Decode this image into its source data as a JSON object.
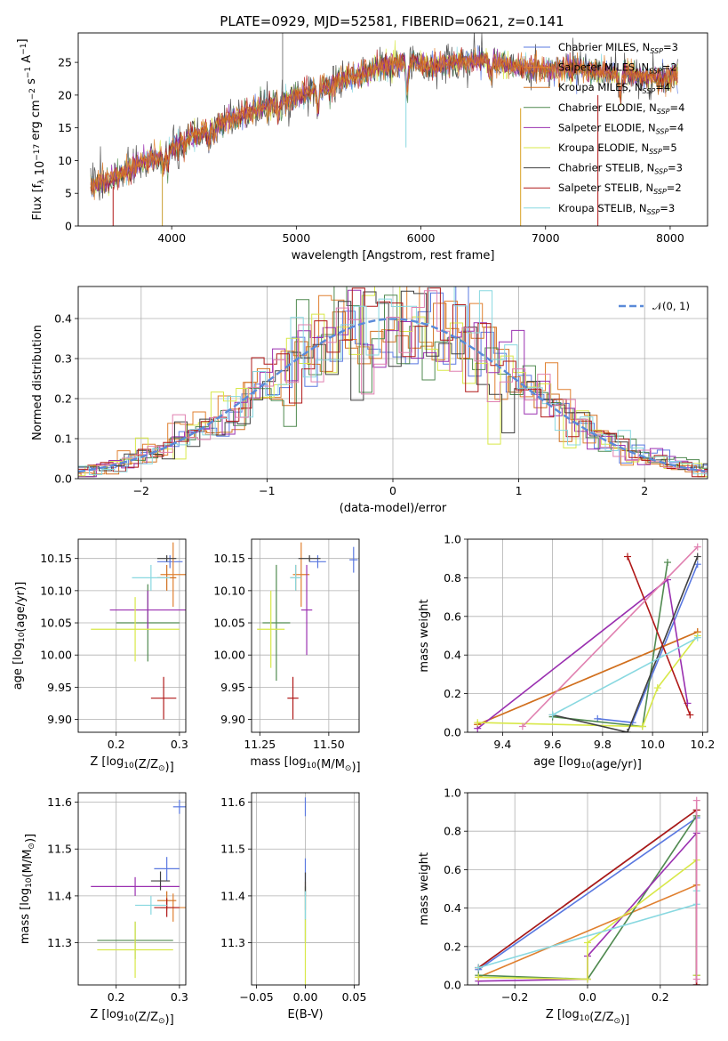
{
  "title": "PLATE=0929, MJD=52581, FIBERID=0621, z=0.141",
  "models": [
    {
      "name": "Chabrier MILES",
      "nssp": "3",
      "color": "#5a78e0"
    },
    {
      "name": "Salpeter MILES",
      "nssp": "2",
      "color": "#e08030"
    },
    {
      "name": "Kroupa MILES",
      "nssp": "4",
      "color": "#d07020"
    },
    {
      "name": "Chabrier ELODIE",
      "nssp": "4",
      "color": "#508a50"
    },
    {
      "name": "Salpeter ELODIE",
      "nssp": "4",
      "color": "#9a30b0"
    },
    {
      "name": "Kroupa ELODIE",
      "nssp": "5",
      "color": "#d8e848"
    },
    {
      "name": "Chabrier STELIB",
      "nssp": "3",
      "color": "#404040"
    },
    {
      "name": "Salpeter STELIB",
      "nssp": "2",
      "color": "#b01818"
    },
    {
      "name": "Kroupa STELIB",
      "nssp": "3",
      "color": "#88d8e0"
    }
  ],
  "chart_data": [
    {
      "type": "line",
      "id": "spectrum",
      "xlabel": "wavelength [Angstrom, rest frame]",
      "ylabel": "Flux [f_λ 10^-17 erg cm^-2 s^-1 A^-1]",
      "xlim": [
        3250,
        8300
      ],
      "ylim": [
        0,
        29.5
      ],
      "xticks": [
        4000,
        5000,
        6000,
        7000,
        8000
      ],
      "yticks": [
        0,
        5,
        10,
        15,
        20,
        25
      ],
      "grid": false,
      "legend": "top-right",
      "continuum": [
        [
          3350,
          6.2
        ],
        [
          3500,
          7.0
        ],
        [
          3650,
          8.5
        ],
        [
          3800,
          10.0
        ],
        [
          3950,
          11.0
        ],
        [
          4000,
          11.8
        ],
        [
          4100,
          13.0
        ],
        [
          4200,
          14.0
        ],
        [
          4300,
          15.0
        ],
        [
          4500,
          16.5
        ],
        [
          4700,
          18.0
        ],
        [
          4900,
          19.0
        ],
        [
          5100,
          20.5
        ],
        [
          5300,
          22.0
        ],
        [
          5500,
          23.0
        ],
        [
          5700,
          24.5
        ],
        [
          5900,
          24.8
        ],
        [
          6100,
          24.5
        ],
        [
          6300,
          25.0
        ],
        [
          6500,
          25.5
        ],
        [
          6700,
          24.5
        ],
        [
          6900,
          24.0
        ],
        [
          7100,
          24.0
        ],
        [
          7300,
          24.0
        ],
        [
          7500,
          23.5
        ],
        [
          7700,
          23.0
        ],
        [
          7900,
          22.5
        ],
        [
          8050,
          23.0
        ]
      ],
      "line_xrange": [
        3350,
        8060
      ]
    },
    {
      "type": "histogram",
      "id": "residuals",
      "xlabel": "(data-model)/error",
      "ylabel": "Normed distribution",
      "xlim": [
        -2.5,
        2.5
      ],
      "ylim": [
        0,
        0.48
      ],
      "xticks": [
        -2,
        -1,
        0,
        1,
        2
      ],
      "yticks": [
        0.0,
        0.1,
        0.2,
        0.3,
        0.4
      ],
      "grid": true,
      "legend": "top-right",
      "reference_curve": {
        "label": "𝒩(0, 1)",
        "color": "#5a8ad8",
        "mean": 0,
        "sigma": 1
      },
      "bin_width": 0.1
    },
    {
      "type": "errorbar",
      "id": "age-vs-Z",
      "xlabel": "Z [log10(Z/Z⊙)]",
      "ylabel": "age  [log10(age/yr)]",
      "xlim": [
        0.14,
        0.31
      ],
      "ylim": [
        9.88,
        10.18
      ],
      "xticks": [
        0.2,
        0.3
      ],
      "yticks": [
        9.9,
        9.95,
        10.0,
        10.05,
        10.1,
        10.15
      ],
      "grid": true,
      "points": [
        {
          "model": 0,
          "x": 0.285,
          "xerr": 0.02,
          "y": 10.145,
          "yerr": 0.01
        },
        {
          "model": 1,
          "x": 0.29,
          "xerr": 0.02,
          "y": 10.125,
          "yerr": 0.05
        },
        {
          "model": 2,
          "x": 0.28,
          "xerr": 0.015,
          "y": 10.12,
          "yerr": 0.02
        },
        {
          "model": 3,
          "x": 0.25,
          "xerr": 0.05,
          "y": 10.05,
          "yerr": 0.06
        },
        {
          "model": 4,
          "x": 0.25,
          "xerr": 0.06,
          "y": 10.07,
          "yerr": 0.03
        },
        {
          "model": 5,
          "x": 0.23,
          "xerr": 0.07,
          "y": 10.04,
          "yerr": 0.05
        },
        {
          "model": 6,
          "x": 0.28,
          "xerr": 0.015,
          "y": 10.15,
          "yerr": 0.005
        },
        {
          "model": 7,
          "x": 0.275,
          "xerr": 0.02,
          "y": 9.933,
          "yerr": 0.033
        },
        {
          "model": 8,
          "x": 0.255,
          "xerr": 0.03,
          "y": 10.12,
          "yerr": 0.02
        }
      ]
    },
    {
      "type": "errorbar",
      "id": "age-vs-mass",
      "xlabel": "mass [log10(M/M⊙)]",
      "ylabel": "",
      "xlim": [
        11.22,
        11.61
      ],
      "ylim": [
        9.88,
        10.18
      ],
      "xticks": [
        11.25,
        11.5
      ],
      "yticks": [
        9.9,
        9.95,
        10.0,
        10.05,
        10.1,
        10.15
      ],
      "grid": true,
      "points": [
        {
          "model": 0,
          "x": 11.46,
          "xerr": 0.03,
          "y": 10.145,
          "yerr": 0.01
        },
        {
          "model": 1,
          "x": 11.4,
          "xerr": 0.03,
          "y": 10.125,
          "yerr": 0.05
        },
        {
          "model": 2,
          "x": 11.38,
          "xerr": 0.02,
          "y": 10.12,
          "yerr": 0.02
        },
        {
          "model": 3,
          "x": 11.31,
          "xerr": 0.05,
          "y": 10.05,
          "yerr": 0.09
        },
        {
          "model": 4,
          "x": 11.42,
          "xerr": 0.02,
          "y": 10.07,
          "yerr": 0.07
        },
        {
          "model": 5,
          "x": 11.29,
          "xerr": 0.05,
          "y": 10.04,
          "yerr": 0.06
        },
        {
          "model": 6,
          "x": 11.43,
          "xerr": 0.04,
          "y": 10.15,
          "yerr": 0.005
        },
        {
          "model": 7,
          "x": 11.37,
          "xerr": 0.02,
          "y": 9.933,
          "yerr": 0.033
        },
        {
          "model": 8,
          "x": 11.38,
          "xerr": 0.02,
          "y": 10.12,
          "yerr": 0.02
        },
        {
          "model": 0,
          "x": 11.59,
          "xerr": 0.015,
          "y": 10.148,
          "yerr": 0.02
        }
      ]
    },
    {
      "type": "line",
      "id": "mass-weight-vs-age",
      "xlabel": "age  [log10(age/yr)]",
      "ylabel": "mass weight",
      "xlim": [
        9.26,
        10.22
      ],
      "ylim": [
        0,
        1.0
      ],
      "xticks": [
        9.4,
        9.6,
        9.8,
        10.0,
        10.2
      ],
      "yticks": [
        0.0,
        0.2,
        0.4,
        0.6,
        0.8,
        1.0
      ],
      "grid": true,
      "series": [
        {
          "model": 0,
          "x": [
            9.78,
            9.92,
            10.18
          ],
          "y": [
            0.07,
            0.05,
            0.87
          ]
        },
        {
          "model": 1,
          "x": [
            9.3,
            10.18
          ],
          "y": [
            0.04,
            0.52
          ]
        },
        {
          "model": 2,
          "x": [
            9.3,
            10.18
          ],
          "y": [
            0.04,
            0.52
          ]
        },
        {
          "model": 3,
          "x": [
            9.6,
            9.96,
            10.06
          ],
          "y": [
            0.08,
            0.03,
            0.88
          ]
        },
        {
          "model": 4,
          "x": [
            9.3,
            10.06,
            10.14
          ],
          "y": [
            0.02,
            0.79,
            0.15
          ]
        },
        {
          "model": 5,
          "x": [
            9.3,
            9.96,
            10.02,
            10.18
          ],
          "y": [
            0.05,
            0.03,
            0.23,
            0.5
          ]
        },
        {
          "model": 6,
          "x": [
            9.6,
            9.9,
            10.18
          ],
          "y": [
            0.09,
            0.0,
            0.91
          ]
        },
        {
          "model": 7,
          "x": [
            9.9,
            10.15
          ],
          "y": [
            0.91,
            0.09
          ]
        },
        {
          "model": 8,
          "x": [
            9.6,
            10.18
          ],
          "y": [
            0.09,
            0.49
          ]
        },
        {
          "model": 0,
          "x": [
            9.48,
            10.18
          ],
          "y": [
            0.03,
            0.96
          ]
        }
      ]
    },
    {
      "type": "errorbar",
      "id": "mass-vs-Z",
      "xlabel": "Z [log10(Z/Z⊙)]",
      "ylabel": "mass [log10(M/M⊙)]",
      "xlim": [
        0.14,
        0.31
      ],
      "ylim": [
        11.21,
        11.62
      ],
      "xticks": [
        0.2,
        0.3
      ],
      "yticks": [
        11.3,
        11.4,
        11.5,
        11.6
      ],
      "grid": true,
      "points": [
        {
          "model": 0,
          "x": 0.28,
          "xerr": 0.02,
          "y": 11.458,
          "yerr": 0.025
        },
        {
          "model": 1,
          "x": 0.29,
          "xerr": 0.02,
          "y": 11.375,
          "yerr": 0.03
        },
        {
          "model": 2,
          "x": 0.28,
          "xerr": 0.015,
          "y": 11.39,
          "yerr": 0.02
        },
        {
          "model": 3,
          "x": 0.23,
          "xerr": 0.06,
          "y": 11.305,
          "yerr": 0.04
        },
        {
          "model": 4,
          "x": 0.23,
          "xerr": 0.07,
          "y": 11.42,
          "yerr": 0.02
        },
        {
          "model": 5,
          "x": 0.23,
          "xerr": 0.06,
          "y": 11.285,
          "yerr": 0.06
        },
        {
          "model": 6,
          "x": 0.27,
          "xerr": 0.015,
          "y": 11.432,
          "yerr": 0.02
        },
        {
          "model": 7,
          "x": 0.28,
          "xerr": 0.02,
          "y": 11.375,
          "yerr": 0.02
        },
        {
          "model": 8,
          "x": 0.255,
          "xerr": 0.025,
          "y": 11.38,
          "yerr": 0.02
        },
        {
          "model": 0,
          "x": 0.3,
          "xerr": 0.01,
          "y": 11.59,
          "yerr": 0.015
        }
      ]
    },
    {
      "type": "errorbar",
      "id": "mass-vs-EBV",
      "xlabel": "E(B-V)",
      "ylabel": "",
      "xlim": [
        -0.055,
        0.055
      ],
      "ylim": [
        11.21,
        11.62
      ],
      "xticks": [
        -0.05,
        0.0,
        0.05
      ],
      "yticks": [
        11.3,
        11.4,
        11.5,
        11.6
      ],
      "grid": true,
      "points": [
        {
          "model": 0,
          "x": 0.0,
          "xerr": 0.0,
          "y": 11.44,
          "yerr": 0.04
        },
        {
          "model": 1,
          "x": 0.0,
          "xerr": 0.0,
          "y": 11.4,
          "yerr": 0.03
        },
        {
          "model": 3,
          "x": 0.0,
          "xerr": 0.0,
          "y": 11.36,
          "yerr": 0.06
        },
        {
          "model": 5,
          "x": 0.0,
          "xerr": 0.0,
          "y": 11.27,
          "yerr": 0.08
        },
        {
          "model": 6,
          "x": 0.0,
          "xerr": 0.0,
          "y": 11.43,
          "yerr": 0.02
        },
        {
          "model": 8,
          "x": 0.0,
          "xerr": 0.0,
          "y": 11.38,
          "yerr": 0.03
        },
        {
          "model": 0,
          "x": 0.0,
          "xerr": 0.0,
          "y": 11.59,
          "yerr": 0.02
        }
      ]
    },
    {
      "type": "line",
      "id": "mass-weight-vs-Z",
      "xlabel": "Z [log10(Z/Z⊙)]",
      "ylabel": "mass weight",
      "xlim": [
        -0.33,
        0.33
      ],
      "ylim": [
        0,
        1.0
      ],
      "xticks": [
        -0.2,
        0.0,
        0.2
      ],
      "yticks": [
        0.0,
        0.2,
        0.4,
        0.6,
        0.8,
        1.0
      ],
      "grid": true,
      "series": [
        {
          "model": 0,
          "x": [
            -0.3,
            0.3,
            0.3
          ],
          "y": [
            0.08,
            0.87,
            0.05
          ]
        },
        {
          "model": 1,
          "x": [
            -0.3,
            0.3,
            0.3
          ],
          "y": [
            0.04,
            0.52,
            0.0
          ]
        },
        {
          "model": 3,
          "x": [
            -0.3,
            0.0,
            0.3,
            0.3
          ],
          "y": [
            0.05,
            0.03,
            0.88,
            0.05
          ]
        },
        {
          "model": 4,
          "x": [
            -0.3,
            0.0,
            0.0,
            0.3,
            0.3
          ],
          "y": [
            0.02,
            0.03,
            0.15,
            0.79,
            0.0
          ]
        },
        {
          "model": 5,
          "x": [
            -0.3,
            0.0,
            0.0,
            0.3,
            0.3
          ],
          "y": [
            0.04,
            0.03,
            0.22,
            0.65,
            0.05
          ]
        },
        {
          "model": 6,
          "x": [
            -0.3,
            0.3,
            0.3
          ],
          "y": [
            0.09,
            0.91,
            0.0
          ]
        },
        {
          "model": 7,
          "x": [
            -0.3,
            0.3,
            0.3
          ],
          "y": [
            0.09,
            0.91,
            0.0
          ]
        },
        {
          "model": 8,
          "x": [
            -0.3,
            0.3,
            0.3
          ],
          "y": [
            0.09,
            0.42,
            0.49
          ]
        },
        {
          "model": 0,
          "x": [
            0.3,
            0.3
          ],
          "y": [
            0.96,
            0.03
          ]
        }
      ]
    }
  ]
}
